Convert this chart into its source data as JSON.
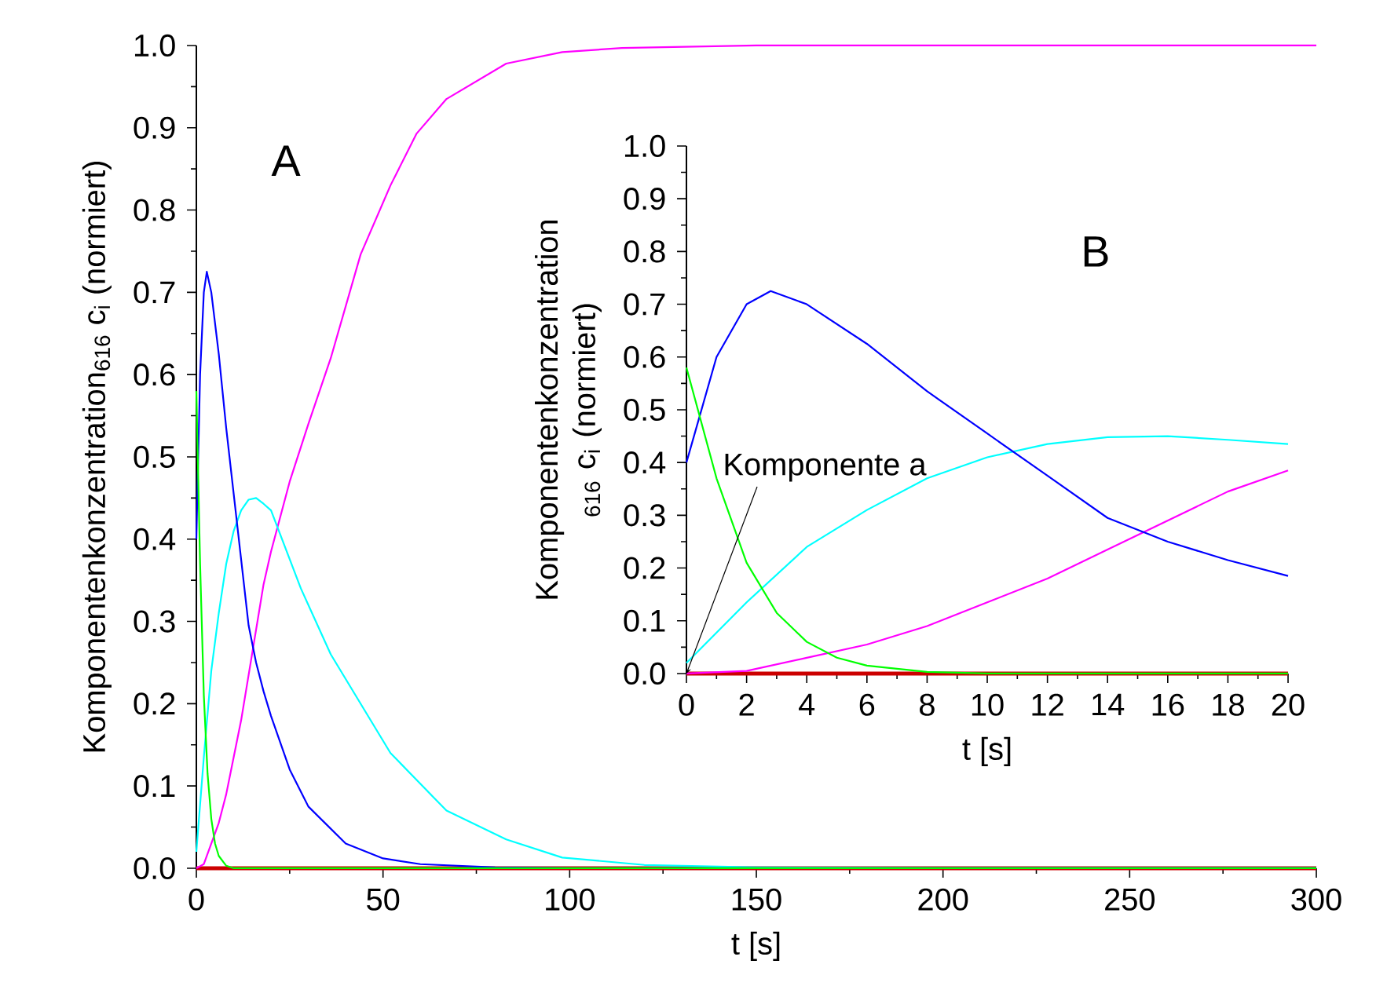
{
  "chart_data": [
    {
      "type": "line",
      "xlabel": "t [s]",
      "ylabel": "Komponentenkonzentration$_{616}$ c$_{i}$ (normiert)",
      "xlim": [
        0,
        300
      ],
      "ylim": [
        0,
        1
      ],
      "xticks": [
        0,
        50,
        100,
        150,
        200,
        250,
        300
      ],
      "yticks": [
        {
          "value": 0,
          "label": "0.0"
        },
        {
          "value": 0.1,
          "label": "0.1"
        },
        {
          "value": 0.2,
          "label": "0.2"
        },
        {
          "value": 0.3,
          "label": "0.3"
        },
        {
          "value": 0.4,
          "label": "0.4"
        },
        {
          "value": 0.5,
          "label": "0.5"
        },
        {
          "value": 0.6,
          "label": "0.6"
        },
        {
          "value": 0.7,
          "label": "0.7"
        },
        {
          "value": 0.8,
          "label": "0.8"
        },
        {
          "value": 0.9,
          "label": "0.9"
        },
        {
          "value": 1,
          "label": "1.0"
        }
      ],
      "annotations": [
        "A"
      ],
      "series": [
        {
          "color": "#cc0000",
          "x": [
            0,
            300
          ],
          "values": [
            0,
            0
          ]
        },
        {
          "color": "#ff00ff",
          "x": [
            0,
            2,
            4,
            6,
            8,
            10,
            12,
            14,
            16,
            18,
            20,
            25,
            30,
            36,
            44,
            52,
            59,
            67,
            83,
            98,
            114,
            150,
            300
          ],
          "values": [
            0,
            0.005,
            0.03,
            0.055,
            0.09,
            0.135,
            0.18,
            0.235,
            0.29,
            0.345,
            0.385,
            0.47,
            0.54,
            0.62,
            0.746,
            0.83,
            0.893,
            0.935,
            0.978,
            0.992,
            0.997,
            1,
            1
          ]
        },
        {
          "color": "#00ffff",
          "x": [
            0,
            2,
            4,
            6,
            8,
            10,
            12,
            14,
            16,
            18,
            20,
            28,
            36,
            52,
            67,
            83,
            98,
            120,
            150,
            200,
            300
          ],
          "values": [
            0.02,
            0.135,
            0.24,
            0.31,
            0.37,
            0.41,
            0.435,
            0.448,
            0.45,
            0.443,
            0.435,
            0.34,
            0.26,
            0.14,
            0.07,
            0.035,
            0.013,
            0.004,
            0.001,
            0,
            0
          ]
        },
        {
          "color": "#0000ff",
          "x": [
            0,
            1,
            2,
            2.8,
            4,
            6,
            8,
            10,
            12,
            14,
            16,
            18,
            20,
            25,
            30,
            40,
            50,
            60,
            80,
            100,
            300
          ],
          "values": [
            0.4,
            0.6,
            0.7,
            0.725,
            0.7,
            0.625,
            0.535,
            0.455,
            0.375,
            0.295,
            0.25,
            0.215,
            0.185,
            0.12,
            0.075,
            0.03,
            0.012,
            0.005,
            0.001,
            0,
            0
          ]
        },
        {
          "color": "#00ff00",
          "x": [
            0,
            1,
            2,
            3,
            4,
            5,
            6,
            8,
            10,
            300
          ],
          "values": [
            0.58,
            0.37,
            0.21,
            0.115,
            0.06,
            0.03,
            0.015,
            0.003,
            0,
            0
          ]
        }
      ]
    },
    {
      "type": "line",
      "xlabel": "t [s]",
      "ylabel": "Komponentenkonzentration $_{616}$ c$_{i}$ (normiert)",
      "xlim": [
        0,
        20
      ],
      "ylim": [
        0,
        1
      ],
      "xticks": [
        0,
        2,
        4,
        6,
        8,
        10,
        12,
        14,
        16,
        18,
        20
      ],
      "yticks": [
        {
          "value": 0,
          "label": "0.0"
        },
        {
          "value": 0.1,
          "label": "0.1"
        },
        {
          "value": 0.2,
          "label": "0.2"
        },
        {
          "value": 0.3,
          "label": "0.3"
        },
        {
          "value": 0.4,
          "label": "0.4"
        },
        {
          "value": 0.5,
          "label": "0.5"
        },
        {
          "value": 0.6,
          "label": "0.6"
        },
        {
          "value": 0.7,
          "label": "0.7"
        },
        {
          "value": 0.8,
          "label": "0.8"
        },
        {
          "value": 0.9,
          "label": "0.9"
        },
        {
          "value": 1,
          "label": "1.0"
        }
      ],
      "annotations": [
        "B",
        {
          "text": "Komponente a",
          "x": 0,
          "y": 0
        }
      ],
      "series": [
        {
          "color": "#cc0000",
          "x": [
            0,
            20
          ],
          "values": [
            0,
            0
          ]
        },
        {
          "color": "#ff00ff",
          "x": [
            0,
            2,
            4,
            6,
            8,
            10,
            12,
            14,
            16,
            18,
            20
          ],
          "values": [
            0,
            0.005,
            0.03,
            0.055,
            0.09,
            0.135,
            0.18,
            0.235,
            0.29,
            0.345,
            0.385
          ]
        },
        {
          "color": "#00ffff",
          "x": [
            0,
            2,
            4,
            6,
            8,
            10,
            12,
            14,
            16,
            18,
            20
          ],
          "values": [
            0.02,
            0.135,
            0.24,
            0.31,
            0.37,
            0.41,
            0.435,
            0.448,
            0.45,
            0.443,
            0.435
          ]
        },
        {
          "color": "#0000ff",
          "x": [
            0,
            1,
            2,
            2.8,
            4,
            6,
            8,
            10,
            12,
            14,
            16,
            18,
            20
          ],
          "values": [
            0.4,
            0.6,
            0.7,
            0.725,
            0.7,
            0.625,
            0.535,
            0.455,
            0.375,
            0.295,
            0.25,
            0.215,
            0.185
          ]
        },
        {
          "color": "#00ff00",
          "x": [
            0,
            1,
            2,
            3,
            4,
            5,
            6,
            8,
            10,
            20
          ],
          "values": [
            0.58,
            0.37,
            0.21,
            0.115,
            0.06,
            0.03,
            0.015,
            0.003,
            0,
            0
          ]
        }
      ]
    }
  ]
}
